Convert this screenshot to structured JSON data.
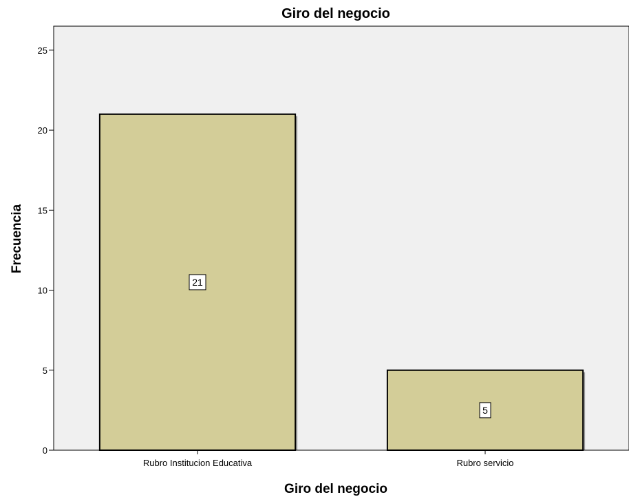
{
  "chart_data": {
    "type": "bar",
    "title": "Giro del negocio",
    "xlabel": "Giro del negocio",
    "ylabel": "Frecuencia",
    "categories": [
      "Rubro Institucion Educativa",
      "Rubro servicio"
    ],
    "values": [
      21,
      5
    ],
    "data_labels": [
      "21",
      "5"
    ],
    "ylim": [
      0,
      26.5
    ],
    "yticks": [
      0,
      5,
      10,
      15,
      20,
      25
    ],
    "grid": false,
    "colors": {
      "bar_fill": "#d3cd98",
      "bar_stroke": "#000000",
      "plot_background": "#f0f0f0"
    }
  }
}
